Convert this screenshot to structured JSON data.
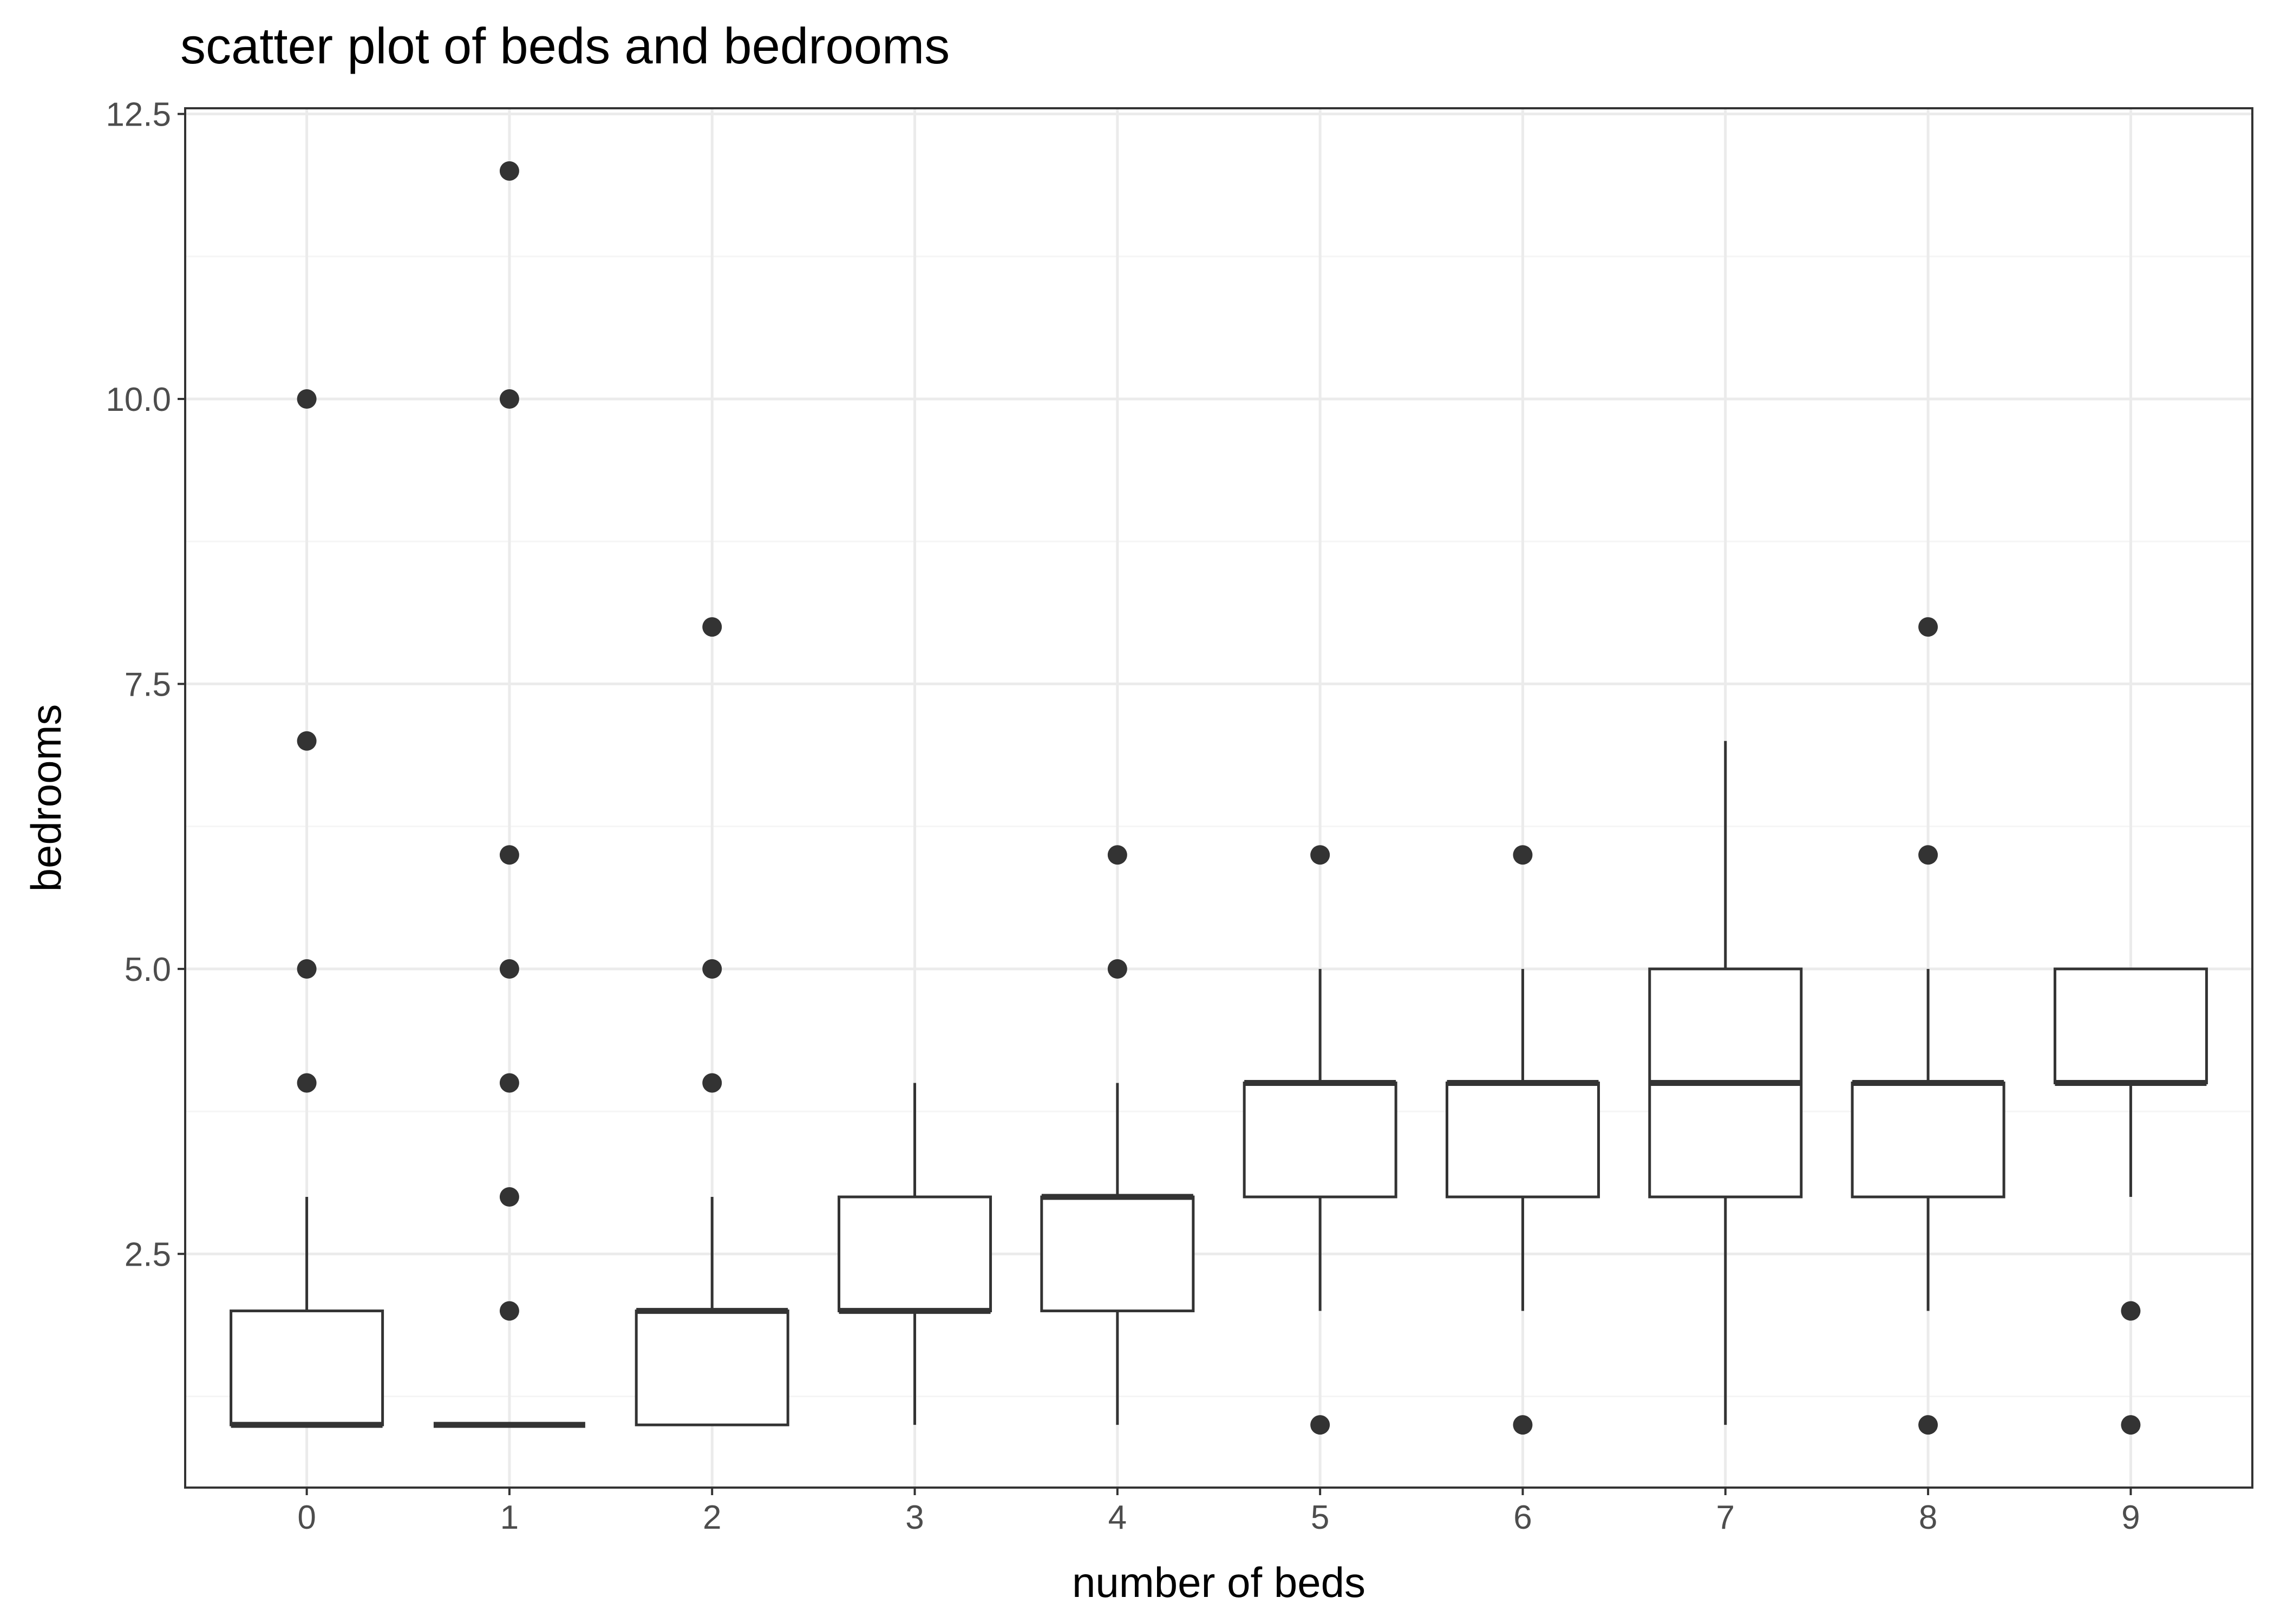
{
  "chart_data": {
    "type": "boxplot",
    "title": "scatter plot of beds and bedrooms",
    "xlabel": "number of beds",
    "ylabel": "bedrooms",
    "categories": [
      "0",
      "1",
      "2",
      "3",
      "4",
      "5",
      "6",
      "7",
      "8",
      "9"
    ],
    "ylim": [
      0.45,
      12.55
    ],
    "y_ticks": [
      2.5,
      5.0,
      7.5,
      10.0,
      12.5
    ],
    "y_tick_labels": [
      "2.5",
      "5.0",
      "7.5",
      "10.0",
      "12.5"
    ],
    "grid": true,
    "boxes": [
      {
        "category": "0",
        "whisker_low": 1,
        "q1": 1,
        "median": 1,
        "q3": 2,
        "whisker_high": 3,
        "outliers": [
          4,
          5,
          7,
          10
        ]
      },
      {
        "category": "1",
        "whisker_low": 1,
        "q1": 1,
        "median": 1,
        "q3": 1,
        "whisker_high": 1,
        "outliers": [
          2,
          3,
          4,
          5,
          6,
          10,
          12
        ]
      },
      {
        "category": "2",
        "whisker_low": 1,
        "q1": 1,
        "median": 2,
        "q3": 2,
        "whisker_high": 3,
        "outliers": [
          4,
          5,
          8
        ]
      },
      {
        "category": "3",
        "whisker_low": 1,
        "q1": 2,
        "median": 2,
        "q3": 3,
        "whisker_high": 4,
        "outliers": []
      },
      {
        "category": "4",
        "whisker_low": 1,
        "q1": 2,
        "median": 3,
        "q3": 3,
        "whisker_high": 4,
        "outliers": [
          5,
          6
        ]
      },
      {
        "category": "5",
        "whisker_low": 2,
        "q1": 3,
        "median": 4,
        "q3": 4,
        "whisker_high": 5,
        "outliers": [
          1,
          6
        ]
      },
      {
        "category": "6",
        "whisker_low": 2,
        "q1": 3,
        "median": 4,
        "q3": 4,
        "whisker_high": 5,
        "outliers": [
          1,
          6
        ]
      },
      {
        "category": "7",
        "whisker_low": 1,
        "q1": 3,
        "median": 4,
        "q3": 5,
        "whisker_high": 7,
        "outliers": []
      },
      {
        "category": "8",
        "whisker_low": 2,
        "q1": 3,
        "median": 4,
        "q3": 4,
        "whisker_high": 5,
        "outliers": [
          1,
          6,
          8
        ]
      },
      {
        "category": "9",
        "whisker_low": 3,
        "q1": 4,
        "median": 4,
        "q3": 5,
        "whisker_high": 5,
        "outliers": [
          1,
          2
        ]
      }
    ],
    "colors": {
      "background": "#ffffff",
      "panel_border": "#333333",
      "grid_major": "#ebebeb",
      "grid_minor": "#f5f5f5",
      "box_stroke": "#333333",
      "box_fill": "#ffffff",
      "outlier": "#333333",
      "tick_text": "#4d4d4d",
      "title_text": "#000000"
    }
  }
}
